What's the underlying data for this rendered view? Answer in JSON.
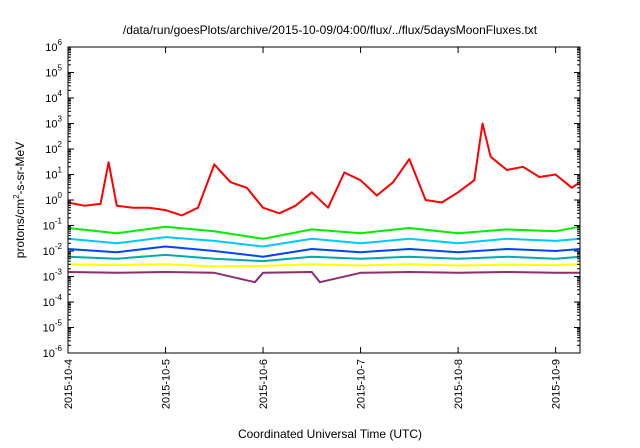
{
  "chart_data": {
    "type": "line",
    "title": "/data/run/goesPlots/archive/2015-10-09/04:00/flux/../flux/5daysMoonFluxes.txt",
    "xlabel": "Coordinated Universal Time (UTC)",
    "ylabel": {
      "prefix": "protons/cm",
      "sup": "2",
      "suffix": "-s-sr-MeV"
    },
    "yscale": "log",
    "ylim": [
      1e-06,
      1000000.0
    ],
    "y_ticks": [
      {
        "base": "10",
        "exp": "-6"
      },
      {
        "base": "10",
        "exp": "-5"
      },
      {
        "base": "10",
        "exp": "-4"
      },
      {
        "base": "10",
        "exp": "-3"
      },
      {
        "base": "10",
        "exp": "-2"
      },
      {
        "base": "10",
        "exp": "-1"
      },
      {
        "base": "10",
        "exp": "0"
      },
      {
        "base": "10",
        "exp": "1"
      },
      {
        "base": "10",
        "exp": "2"
      },
      {
        "base": "10",
        "exp": "3"
      },
      {
        "base": "10",
        "exp": "4"
      },
      {
        "base": "10",
        "exp": "5"
      },
      {
        "base": "10",
        "exp": "6"
      }
    ],
    "xlim": [
      "2015-10-04T00:00",
      "2015-10-09T06:00"
    ],
    "x_ticks": [
      "2015-10-4",
      "2015-10-5",
      "2015-10-6",
      "2015-10-7",
      "2015-10-8",
      "2015-10-9"
    ],
    "x_tick_dates": [
      "2015-10-04",
      "2015-10-05",
      "2015-10-06",
      "2015-10-07",
      "2015-10-08",
      "2015-10-09"
    ],
    "grid": false,
    "series": [
      {
        "color": "#ff0000",
        "x": [
          "2015-10-04T00:00",
          "2015-10-04T04:00",
          "2015-10-04T08:00",
          "2015-10-04T10:00",
          "2015-10-04T12:00",
          "2015-10-04T16:00",
          "2015-10-04T20:00",
          "2015-10-05T00:00",
          "2015-10-05T04:00",
          "2015-10-05T08:00",
          "2015-10-05T12:00",
          "2015-10-05T16:00",
          "2015-10-05T20:00",
          "2015-10-06T00:00",
          "2015-10-06T04:00",
          "2015-10-06T08:00",
          "2015-10-06T12:00",
          "2015-10-06T16:00",
          "2015-10-06T20:00",
          "2015-10-07T00:00",
          "2015-10-07T04:00",
          "2015-10-07T08:00",
          "2015-10-07T12:00",
          "2015-10-07T16:00",
          "2015-10-07T20:00",
          "2015-10-08T00:00",
          "2015-10-08T04:00",
          "2015-10-08T06:00",
          "2015-10-08T08:00",
          "2015-10-08T12:00",
          "2015-10-08T16:00",
          "2015-10-08T20:00",
          "2015-10-09T00:00",
          "2015-10-09T04:00",
          "2015-10-09T06:00"
        ],
        "y": [
          0.8,
          0.6,
          0.7,
          30,
          0.6,
          0.5,
          0.5,
          0.4,
          0.25,
          0.5,
          25,
          5,
          3,
          0.5,
          0.3,
          0.6,
          2,
          0.5,
          12,
          6,
          1.5,
          5,
          40,
          1,
          0.8,
          2,
          6,
          1000,
          50,
          15,
          20,
          8,
          10,
          3,
          5
        ]
      },
      {
        "color": "#00ee00",
        "x": [
          "2015-10-04T00:00",
          "2015-10-04T12:00",
          "2015-10-05T00:00",
          "2015-10-05T12:00",
          "2015-10-06T00:00",
          "2015-10-06T12:00",
          "2015-10-07T00:00",
          "2015-10-07T12:00",
          "2015-10-08T00:00",
          "2015-10-08T12:00",
          "2015-10-09T00:00",
          "2015-10-09T06:00"
        ],
        "y": [
          0.08,
          0.05,
          0.09,
          0.06,
          0.03,
          0.07,
          0.05,
          0.08,
          0.05,
          0.07,
          0.06,
          0.09
        ]
      },
      {
        "color": "#00c8ff",
        "x": [
          "2015-10-04T00:00",
          "2015-10-04T12:00",
          "2015-10-05T00:00",
          "2015-10-05T12:00",
          "2015-10-06T00:00",
          "2015-10-06T12:00",
          "2015-10-07T00:00",
          "2015-10-07T12:00",
          "2015-10-08T00:00",
          "2015-10-08T12:00",
          "2015-10-09T00:00",
          "2015-10-09T06:00"
        ],
        "y": [
          0.03,
          0.02,
          0.035,
          0.025,
          0.015,
          0.03,
          0.02,
          0.03,
          0.02,
          0.03,
          0.025,
          0.03
        ]
      },
      {
        "color": "#0044ff",
        "x": [
          "2015-10-04T00:00",
          "2015-10-04T12:00",
          "2015-10-05T00:00",
          "2015-10-05T12:00",
          "2015-10-06T00:00",
          "2015-10-06T12:00",
          "2015-10-07T00:00",
          "2015-10-07T12:00",
          "2015-10-08T00:00",
          "2015-10-08T12:00",
          "2015-10-09T00:00",
          "2015-10-09T06:00"
        ],
        "y": [
          0.012,
          0.009,
          0.015,
          0.01,
          0.006,
          0.012,
          0.009,
          0.012,
          0.009,
          0.012,
          0.01,
          0.012
        ]
      },
      {
        "color": "#00aaaa",
        "x": [
          "2015-10-04T00:00",
          "2015-10-04T12:00",
          "2015-10-05T00:00",
          "2015-10-05T12:00",
          "2015-10-06T00:00",
          "2015-10-06T12:00",
          "2015-10-07T00:00",
          "2015-10-07T12:00",
          "2015-10-08T00:00",
          "2015-10-08T12:00",
          "2015-10-09T00:00",
          "2015-10-09T06:00"
        ],
        "y": [
          0.006,
          0.005,
          0.007,
          0.005,
          0.004,
          0.006,
          0.005,
          0.006,
          0.005,
          0.006,
          0.005,
          0.006
        ]
      },
      {
        "color": "#ffff00",
        "x": [
          "2015-10-04T00:00",
          "2015-10-04T12:00",
          "2015-10-05T00:00",
          "2015-10-05T12:00",
          "2015-10-06T00:00",
          "2015-10-06T12:00",
          "2015-10-07T00:00",
          "2015-10-07T12:00",
          "2015-10-08T00:00",
          "2015-10-08T12:00",
          "2015-10-09T00:00",
          "2015-10-09T06:00"
        ],
        "y": [
          0.003,
          0.0028,
          0.003,
          0.0025,
          0.0026,
          0.003,
          0.0027,
          0.003,
          0.0027,
          0.0029,
          0.0028,
          0.003
        ]
      },
      {
        "color": "#8b2d6e",
        "x": [
          "2015-10-04T00:00",
          "2015-10-04T12:00",
          "2015-10-05T00:00",
          "2015-10-05T12:00",
          "2015-10-05T22:00",
          "2015-10-06T00:00",
          "2015-10-06T12:00",
          "2015-10-06T14:00",
          "2015-10-07T00:00",
          "2015-10-07T12:00",
          "2015-10-08T00:00",
          "2015-10-08T12:00",
          "2015-10-09T00:00",
          "2015-10-09T06:00"
        ],
        "y": [
          0.0015,
          0.0014,
          0.0015,
          0.0014,
          0.0006,
          0.0014,
          0.0015,
          0.0006,
          0.0014,
          0.0015,
          0.0014,
          0.0015,
          0.0014,
          0.0014
        ]
      }
    ]
  }
}
